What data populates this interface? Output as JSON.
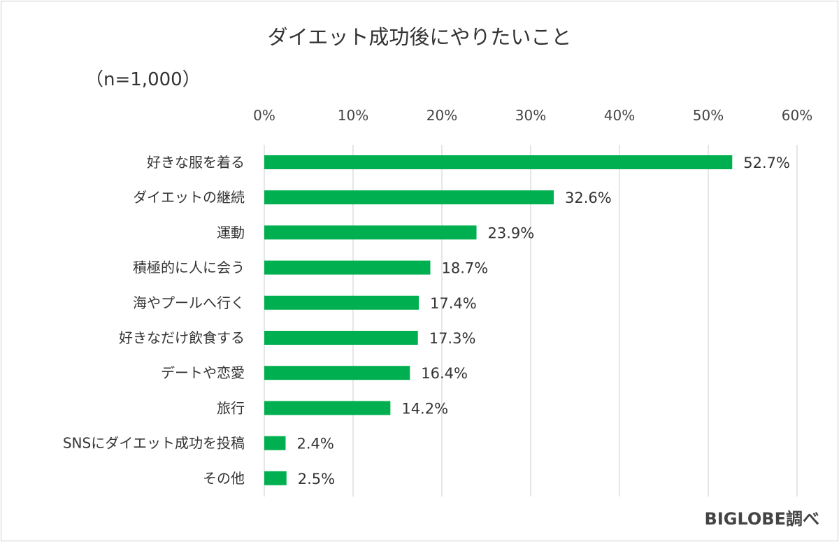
{
  "chart_data": {
    "type": "bar",
    "orientation": "horizontal",
    "title": "ダイエット成功後にやりたいこと",
    "subtitle": "（n=1,000）",
    "source": "BIGLOBE調べ",
    "categories": [
      "好きな服を着る",
      "ダイエットの継続",
      "運動",
      "積極的に人に会う",
      "海やプールへ行く",
      "好きなだけ飲食する",
      "デートや恋愛",
      "旅行",
      "SNSにダイエット成功を投稿",
      "その他"
    ],
    "values": [
      52.7,
      32.6,
      23.9,
      18.7,
      17.4,
      17.3,
      16.4,
      14.2,
      2.4,
      2.5
    ],
    "data_labels": [
      "52.7%",
      "32.6%",
      "23.9%",
      "18.7%",
      "17.4%",
      "17.3%",
      "16.4%",
      "14.2%",
      "2.4%",
      "2.5%"
    ],
    "xlim": [
      0,
      60
    ],
    "x_ticks": [
      "0%",
      "10%",
      "20%",
      "30%",
      "40%",
      "50%",
      "60%"
    ],
    "axis_position": "top",
    "grid": true,
    "legend": "none",
    "bar_color": "#00B050"
  }
}
